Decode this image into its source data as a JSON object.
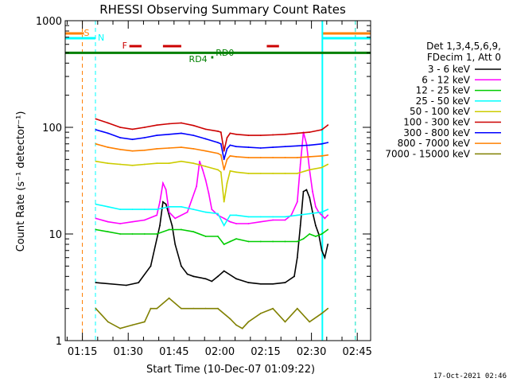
{
  "chart_data": {
    "type": "line",
    "title": "RHESSI Observing Summary Count Rates",
    "xlabel": "Start Time (10-Dec-07 01:09:22)",
    "ylabel": "Count Rate (s⁻¹ detector⁻¹)",
    "footer": "17-Oct-2021 02:46",
    "x_unit": "minutes since 01:09:22",
    "xlim": [
      0,
      100
    ],
    "ylim": [
      1,
      1000
    ],
    "yscale": "log",
    "x_ticks": [
      {
        "label": "01:15",
        "value": 5.63
      },
      {
        "label": "01:30",
        "value": 20.63
      },
      {
        "label": "01:45",
        "value": 35.63
      },
      {
        "label": "02:00",
        "value": 50.63
      },
      {
        "label": "02:15",
        "value": 65.63
      },
      {
        "label": "02:30",
        "value": 80.63
      },
      {
        "label": "02:45",
        "value": 95.63
      }
    ],
    "y_ticks": [
      {
        "label": "1",
        "value": 1
      },
      {
        "label": "10",
        "value": 10
      },
      {
        "label": "100",
        "value": 100
      },
      {
        "label": "1000",
        "value": 1000
      }
    ],
    "legend": {
      "header": [
        "Det 1,3,4,5,6,9,",
        "FDecim 1, Att 0"
      ],
      "placement": "right"
    },
    "series": [
      {
        "name": "3 - 6 keV",
        "color": "#000000",
        "x": [
          10,
          20,
          24,
          28,
          31,
          32,
          33,
          35,
          36,
          38,
          40,
          42,
          46,
          48,
          50,
          52,
          56,
          60,
          64,
          68,
          72,
          75,
          76,
          77,
          78,
          79,
          80,
          81,
          82,
          83,
          84,
          85,
          86
        ],
        "y": [
          3.5,
          3.3,
          3.5,
          5,
          12,
          20,
          19,
          12,
          8,
          5,
          4.2,
          4,
          3.8,
          3.6,
          4,
          4.5,
          3.8,
          3.5,
          3.4,
          3.4,
          3.5,
          4,
          6,
          12,
          25,
          26,
          22,
          16,
          12,
          10,
          7,
          6,
          8
        ]
      },
      {
        "name": "6 - 12 keV",
        "color": "#ff00ff",
        "x": [
          10,
          14,
          18,
          22,
          26,
          30,
          31,
          32,
          33,
          34,
          36,
          40,
          43,
          44,
          45,
          46,
          47,
          48,
          50,
          52,
          54,
          56,
          60,
          64,
          68,
          72,
          74,
          76,
          77,
          78,
          79,
          80,
          81,
          82,
          83,
          84,
          85,
          86
        ],
        "y": [
          14,
          13,
          12.5,
          13,
          13.5,
          15,
          20,
          30,
          26,
          16,
          14,
          16,
          28,
          48,
          40,
          32,
          24,
          17,
          15,
          14,
          13,
          12.5,
          12.5,
          13,
          13.5,
          13.5,
          15,
          20,
          45,
          90,
          70,
          40,
          25,
          18,
          16,
          15,
          14,
          15
        ]
      },
      {
        "name": "12 - 25 keV",
        "color": "#00cc00",
        "x": [
          10,
          14,
          18,
          22,
          26,
          30,
          34,
          38,
          42,
          46,
          50,
          52,
          54,
          56,
          60,
          64,
          68,
          72,
          76,
          78,
          80,
          82,
          84,
          86
        ],
        "y": [
          11,
          10.5,
          10,
          10,
          10,
          10,
          11,
          11,
          10.5,
          9.5,
          9.5,
          8,
          8.5,
          9,
          8.5,
          8.5,
          8.5,
          8.5,
          8.5,
          9,
          10,
          9.5,
          10,
          11
        ]
      },
      {
        "name": "25 - 50 keV",
        "color": "#00ffff",
        "x": [
          10,
          14,
          18,
          22,
          26,
          30,
          34,
          38,
          42,
          46,
          50,
          52,
          54,
          56,
          60,
          64,
          68,
          72,
          76,
          80,
          84,
          86
        ],
        "y": [
          19,
          18,
          17,
          17,
          17,
          17,
          18,
          18,
          17,
          16,
          15.5,
          12,
          15,
          15,
          14.5,
          14.5,
          14.5,
          14.5,
          15,
          15.5,
          16,
          17
        ]
      },
      {
        "name": "50 - 100 keV",
        "color": "#cccc00",
        "x": [
          10,
          14,
          18,
          22,
          26,
          30,
          34,
          38,
          42,
          46,
          50,
          51,
          52,
          53,
          54,
          56,
          60,
          64,
          68,
          72,
          76,
          80,
          84,
          86
        ],
        "y": [
          48,
          46,
          45,
          44,
          45,
          46,
          46,
          48,
          46,
          43,
          40,
          38,
          20,
          30,
          39,
          38,
          37,
          37,
          37,
          37,
          37,
          40,
          42,
          45
        ]
      },
      {
        "name": "100 - 300 keV",
        "color": "#cc0000",
        "x": [
          10,
          14,
          18,
          22,
          26,
          30,
          34,
          38,
          42,
          46,
          50,
          51,
          52,
          53,
          54,
          56,
          60,
          64,
          68,
          72,
          76,
          80,
          84,
          86
        ],
        "y": [
          120,
          110,
          100,
          96,
          100,
          105,
          108,
          110,
          104,
          96,
          92,
          90,
          60,
          80,
          88,
          86,
          84,
          84,
          85,
          86,
          88,
          90,
          95,
          105
        ]
      },
      {
        "name": "300 - 800 keV",
        "color": "#0000ff",
        "x": [
          10,
          14,
          18,
          22,
          26,
          30,
          34,
          38,
          42,
          46,
          50,
          51,
          52,
          53,
          54,
          56,
          60,
          64,
          68,
          72,
          76,
          80,
          84,
          86
        ],
        "y": [
          95,
          88,
          80,
          77,
          80,
          84,
          86,
          88,
          84,
          78,
          72,
          70,
          50,
          63,
          68,
          66,
          65,
          64,
          65,
          66,
          67,
          68,
          70,
          72
        ]
      },
      {
        "name": "800 - 7000 keV",
        "color": "#ff8000",
        "x": [
          10,
          14,
          18,
          22,
          26,
          30,
          34,
          38,
          42,
          46,
          50,
          51,
          52,
          53,
          54,
          56,
          60,
          64,
          68,
          72,
          76,
          80,
          84,
          86
        ],
        "y": [
          70,
          65,
          62,
          60,
          61,
          63,
          64,
          65,
          63,
          60,
          57,
          55,
          40,
          50,
          54,
          53,
          52,
          52,
          52,
          52,
          52,
          53,
          54,
          55
        ]
      },
      {
        "name": "7000 - 15000 keV",
        "color": "#808000",
        "x": [
          10,
          14,
          18,
          22,
          26,
          28,
          30,
          34,
          38,
          42,
          46,
          50,
          54,
          56,
          58,
          60,
          64,
          68,
          72,
          76,
          80,
          84,
          86
        ],
        "y": [
          2,
          1.5,
          1.3,
          1.4,
          1.5,
          2,
          2,
          2.5,
          2,
          2,
          2,
          2,
          1.6,
          1.4,
          1.3,
          1.5,
          1.8,
          2,
          1.5,
          2,
          1.5,
          1.8,
          2
        ]
      }
    ],
    "annotations": [
      {
        "text": "S",
        "color": "#ff8000"
      },
      {
        "text": "N",
        "color": "#00ffff"
      },
      {
        "text": "F",
        "color": "#cc0000"
      },
      {
        "text": "RD0",
        "color": "#008000"
      },
      {
        "text": "RD4",
        "color": "#008000"
      }
    ],
    "flare_intervals": [
      [
        21,
        25
      ],
      [
        32,
        38
      ],
      [
        66,
        70
      ]
    ],
    "saa_interval_x": [
      5.6,
      0
    ],
    "night_interval_x": [
      9.9,
      0
    ],
    "night_end_x": 84.2,
    "saa_end_x": 95.0,
    "rd0_y": 500,
    "rd4_x": [
      47.8,
      48.5
    ],
    "grid": false
  }
}
